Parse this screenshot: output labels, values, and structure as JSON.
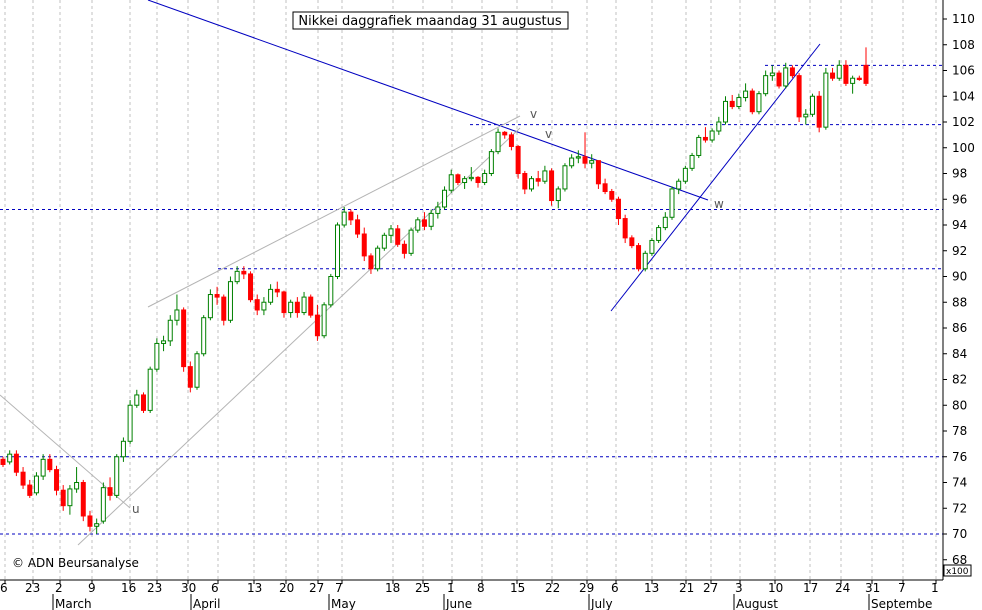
{
  "chart_data": {
    "type": "candlestick",
    "title": "Nikkei daggrafiek maandag 31 augustus",
    "copyright": "© ADN Beursanalyse",
    "y_unit": "x100",
    "ylim": [
      68,
      111
    ],
    "y_ticks": [
      68,
      70,
      72,
      74,
      76,
      78,
      80,
      82,
      84,
      86,
      88,
      90,
      92,
      94,
      96,
      98,
      100,
      102,
      104,
      106,
      108,
      110
    ],
    "x_tick_labels": [
      "6",
      "23",
      "2",
      "9",
      "16",
      "23",
      "30",
      "6",
      "13",
      "20",
      "27",
      "7",
      "18",
      "25",
      "1",
      "8",
      "15",
      "22",
      "29",
      "6",
      "13",
      "21",
      "27",
      "3",
      "10",
      "17",
      "24",
      "31",
      "7",
      "1"
    ],
    "months": [
      "March",
      "April",
      "May",
      "June",
      "July",
      "August",
      "Septembe"
    ],
    "horizontal_levels": [
      70,
      76,
      90.6,
      95.2,
      101.8,
      106.4
    ],
    "wave_labels": [
      "u",
      "v",
      "v",
      "w"
    ],
    "colors": {
      "up": "#008000",
      "down": "#ff0000",
      "level": "#0000c0",
      "trend": "#0000c0",
      "channel": "#b4b4b4",
      "grid": "#c0c0c0"
    },
    "candles": [
      [
        75.8,
        76.0,
        75.2,
        75.4
      ],
      [
        75.6,
        76.5,
        75.4,
        76.2
      ],
      [
        76.2,
        76.5,
        74.5,
        74.8
      ],
      [
        74.8,
        75.2,
        73.5,
        73.8
      ],
      [
        73.8,
        74.2,
        72.8,
        73.0
      ],
      [
        73.2,
        74.8,
        73.0,
        74.5
      ],
      [
        74.5,
        76.2,
        74.2,
        75.8
      ],
      [
        75.8,
        76.2,
        74.8,
        75.0
      ],
      [
        75.0,
        75.3,
        73.0,
        73.4
      ],
      [
        73.4,
        73.8,
        71.8,
        72.2
      ],
      [
        72.2,
        73.8,
        71.5,
        73.5
      ],
      [
        73.5,
        75.2,
        73.2,
        74.0
      ],
      [
        74.0,
        74.2,
        71.0,
        71.4
      ],
      [
        71.4,
        71.8,
        70.2,
        70.6
      ],
      [
        70.6,
        71.2,
        70.0,
        70.8
      ],
      [
        71.0,
        74.0,
        70.8,
        73.6
      ],
      [
        73.6,
        74.4,
        72.6,
        73.0
      ],
      [
        73.0,
        76.2,
        72.8,
        76.0
      ],
      [
        76.0,
        77.5,
        75.6,
        77.2
      ],
      [
        77.2,
        80.4,
        77.0,
        80.0
      ],
      [
        80.0,
        81.2,
        79.8,
        80.8
      ],
      [
        80.8,
        81.0,
        79.4,
        79.6
      ],
      [
        79.6,
        83.0,
        79.4,
        82.8
      ],
      [
        82.8,
        85.2,
        82.6,
        84.8
      ],
      [
        84.8,
        85.4,
        84.2,
        85.0
      ],
      [
        85.0,
        87.0,
        84.6,
        86.6
      ],
      [
        86.6,
        88.6,
        86.2,
        87.4
      ],
      [
        87.4,
        87.6,
        82.6,
        83.0
      ],
      [
        83.0,
        83.4,
        81.0,
        81.4
      ],
      [
        81.4,
        84.2,
        81.2,
        84.0
      ],
      [
        84.0,
        87.0,
        83.8,
        86.8
      ],
      [
        86.8,
        89.0,
        86.6,
        88.6
      ],
      [
        88.6,
        89.2,
        87.8,
        88.4
      ],
      [
        88.4,
        88.6,
        86.2,
        86.6
      ],
      [
        86.6,
        90.0,
        86.4,
        89.6
      ],
      [
        89.6,
        90.8,
        89.4,
        90.4
      ],
      [
        90.4,
        90.8,
        89.8,
        90.2
      ],
      [
        90.2,
        90.4,
        88.0,
        88.2
      ],
      [
        88.2,
        88.6,
        87.0,
        87.4
      ],
      [
        87.4,
        88.4,
        87.0,
        88.0
      ],
      [
        88.0,
        89.4,
        87.8,
        89.0
      ],
      [
        89.0,
        89.6,
        88.4,
        88.8
      ],
      [
        88.8,
        88.9,
        86.8,
        87.2
      ],
      [
        87.2,
        88.2,
        86.8,
        88.0
      ],
      [
        88.0,
        88.4,
        86.8,
        87.2
      ],
      [
        87.2,
        88.8,
        87.0,
        88.4
      ],
      [
        88.4,
        88.6,
        86.8,
        87.0
      ],
      [
        87.0,
        87.8,
        85.0,
        85.4
      ],
      [
        85.4,
        88.0,
        85.2,
        87.8
      ],
      [
        87.8,
        90.2,
        87.6,
        90.0
      ],
      [
        90.0,
        94.2,
        89.8,
        94.0
      ],
      [
        94.0,
        95.4,
        93.8,
        95.0
      ],
      [
        95.0,
        95.2,
        94.0,
        94.4
      ],
      [
        94.4,
        94.8,
        93.0,
        93.3
      ],
      [
        93.3,
        93.8,
        91.2,
        91.6
      ],
      [
        91.6,
        91.8,
        90.2,
        90.6
      ],
      [
        90.6,
        92.4,
        90.4,
        92.2
      ],
      [
        92.2,
        93.4,
        92.0,
        93.2
      ],
      [
        93.2,
        94.0,
        92.6,
        93.7
      ],
      [
        93.7,
        94.0,
        92.3,
        92.5
      ],
      [
        92.5,
        92.8,
        91.4,
        91.8
      ],
      [
        91.8,
        93.8,
        91.6,
        93.6
      ],
      [
        93.6,
        94.6,
        93.4,
        94.4
      ],
      [
        94.4,
        95.0,
        93.6,
        93.9
      ],
      [
        93.9,
        95.2,
        93.6,
        94.9
      ],
      [
        94.9,
        95.8,
        94.5,
        95.4
      ],
      [
        95.4,
        97.0,
        95.2,
        96.7
      ],
      [
        96.7,
        98.3,
        96.5,
        97.9
      ],
      [
        97.9,
        98.0,
        97.1,
        97.3
      ],
      [
        97.3,
        97.8,
        96.8,
        97.6
      ],
      [
        97.6,
        98.5,
        97.4,
        97.7
      ],
      [
        97.7,
        97.8,
        96.9,
        97.3
      ],
      [
        97.3,
        98.3,
        97.1,
        98.0
      ],
      [
        98.0,
        99.9,
        97.8,
        99.7
      ],
      [
        99.7,
        101.5,
        99.5,
        101.2
      ],
      [
        101.2,
        101.3,
        100.7,
        101.0
      ],
      [
        101.0,
        101.2,
        99.8,
        100.1
      ],
      [
        100.1,
        100.2,
        97.6,
        98.0
      ],
      [
        98.0,
        98.2,
        96.4,
        96.8
      ],
      [
        96.8,
        97.8,
        96.6,
        97.6
      ],
      [
        97.6,
        98.2,
        97.0,
        97.4
      ],
      [
        97.4,
        98.6,
        97.2,
        98.2
      ],
      [
        98.2,
        98.4,
        95.5,
        95.9
      ],
      [
        95.9,
        97.0,
        95.3,
        96.8
      ],
      [
        96.8,
        98.8,
        96.6,
        98.6
      ],
      [
        98.6,
        99.5,
        98.4,
        99.2
      ],
      [
        99.2,
        99.8,
        98.8,
        99.3
      ],
      [
        99.3,
        101.2,
        98.4,
        98.8
      ],
      [
        98.8,
        99.5,
        98.4,
        99.0
      ],
      [
        99.0,
        99.0,
        96.8,
        97.2
      ],
      [
        97.2,
        97.6,
        96.4,
        96.6
      ],
      [
        96.6,
        96.8,
        95.8,
        96.0
      ],
      [
        96.0,
        96.2,
        94.0,
        94.5
      ],
      [
        94.5,
        94.8,
        92.6,
        93.0
      ],
      [
        93.0,
        93.2,
        92.2,
        92.4
      ],
      [
        92.4,
        92.6,
        90.4,
        90.6
      ],
      [
        90.6,
        92.0,
        90.4,
        91.8
      ],
      [
        91.8,
        93.0,
        91.6,
        92.8
      ],
      [
        92.8,
        94.0,
        92.6,
        93.8
      ],
      [
        93.8,
        95.0,
        93.6,
        94.6
      ],
      [
        94.6,
        97.0,
        94.4,
        96.8
      ],
      [
        96.8,
        97.6,
        96.4,
        97.4
      ],
      [
        97.4,
        98.6,
        97.2,
        98.4
      ],
      [
        98.4,
        99.6,
        98.2,
        99.4
      ],
      [
        99.4,
        101.0,
        99.2,
        100.8
      ],
      [
        100.8,
        101.6,
        100.4,
        100.6
      ],
      [
        100.6,
        101.5,
        100.4,
        101.3
      ],
      [
        101.3,
        102.4,
        101.0,
        102.0
      ],
      [
        102.0,
        104.0,
        101.8,
        103.6
      ],
      [
        103.6,
        104.1,
        103.0,
        103.2
      ],
      [
        103.2,
        104.2,
        103.0,
        103.9
      ],
      [
        103.9,
        105.0,
        103.6,
        104.4
      ],
      [
        104.4,
        104.6,
        102.6,
        102.8
      ],
      [
        102.8,
        104.4,
        102.6,
        104.2
      ],
      [
        104.2,
        106.0,
        104.0,
        105.6
      ],
      [
        105.6,
        106.4,
        105.2,
        105.8
      ],
      [
        105.8,
        106.0,
        104.6,
        104.8
      ],
      [
        104.8,
        106.6,
        104.6,
        106.2
      ],
      [
        106.2,
        106.4,
        105.4,
        105.6
      ],
      [
        105.6,
        105.8,
        102.0,
        102.4
      ],
      [
        102.4,
        103.0,
        101.8,
        102.6
      ],
      [
        102.6,
        104.2,
        102.4,
        104.0
      ],
      [
        104.0,
        104.4,
        101.2,
        101.6
      ],
      [
        101.6,
        106.2,
        101.4,
        105.8
      ],
      [
        105.8,
        106.2,
        105.2,
        105.4
      ],
      [
        105.4,
        106.8,
        105.2,
        106.4
      ],
      [
        106.4,
        106.8,
        104.8,
        105.0
      ],
      [
        105.0,
        105.6,
        104.2,
        105.4
      ],
      [
        105.4,
        105.6,
        105.2,
        105.3
      ],
      [
        106.4,
        107.8,
        104.8,
        105.0
      ]
    ]
  }
}
